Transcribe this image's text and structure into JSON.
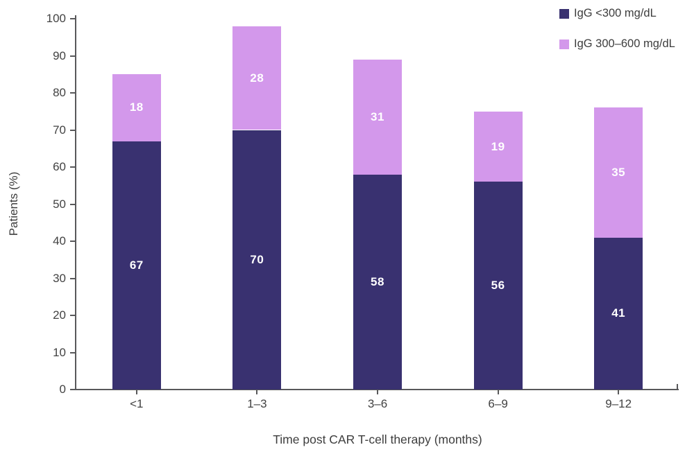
{
  "chart_data": {
    "type": "bar",
    "stacked": true,
    "title": "",
    "categories": [
      "<1",
      "1–3",
      "3–6",
      "6–9",
      "9–12"
    ],
    "series": [
      {
        "name": "IgG <300 mg/dL",
        "color": "#393170",
        "values": [
          67,
          70,
          58,
          56,
          41
        ]
      },
      {
        "name": "IgG 300–600 mg/dL",
        "color": "#D398EB",
        "values": [
          18,
          28,
          31,
          19,
          35
        ]
      }
    ],
    "stack_totals": [
      85,
      98,
      89,
      75,
      76
    ],
    "xlabel": "Time post CAR T-cell therapy (months)",
    "ylabel": "Patients (%)",
    "ylim": [
      0,
      100
    ],
    "yticks": [
      0,
      10,
      20,
      30,
      40,
      50,
      60,
      70,
      80,
      90,
      100
    ],
    "legend_position": "top-right",
    "grid": false,
    "value_labels_shown": true
  },
  "colors": {
    "background": "#ffffff",
    "axis": "#58585a",
    "tick_label_text": "#424242",
    "axis_title_text": "#3d3d3d",
    "bar_value_text": "#ffffff"
  }
}
